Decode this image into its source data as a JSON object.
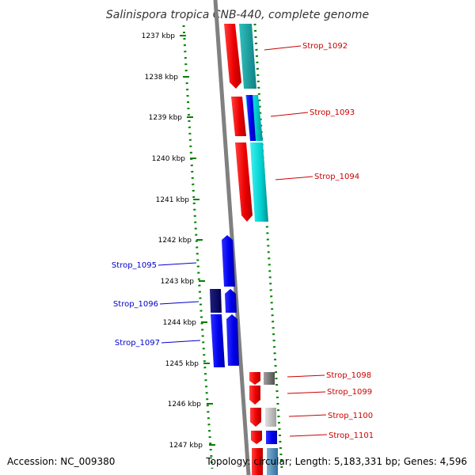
{
  "title": "Salinispora tropica CNB-440, complete genome",
  "footer": {
    "accession": "Accession: NC_009380",
    "summary": "Topology: circular; Length: 5,183,331 bp; Genes: 4,596"
  },
  "ticks": [
    "1237 kbp",
    "1238 kbp",
    "1239 kbp",
    "1240 kbp",
    "1241 kbp",
    "1242 kbp",
    "1243 kbp",
    "1244 kbp",
    "1245 kbp",
    "1246 kbp",
    "1247 kbp"
  ],
  "genes_forward": [
    "Strop_1092",
    "Strop_1093",
    "Strop_1094",
    "Strop_1098",
    "Strop_1099",
    "Strop_1100",
    "Strop_1101"
  ],
  "genes_reverse": [
    "Strop_1095",
    "Strop_1096",
    "Strop_1097"
  ],
  "colors": {
    "forward_strand": "#ff0000",
    "reverse_strand": "#0000ff",
    "cog_cyan": "#00e0e0",
    "cog_grey": "#808080",
    "backbone": "#808080",
    "gc_skew_dots": "#008000",
    "forward_label": "#cc0000",
    "reverse_label": "#0000cc"
  }
}
